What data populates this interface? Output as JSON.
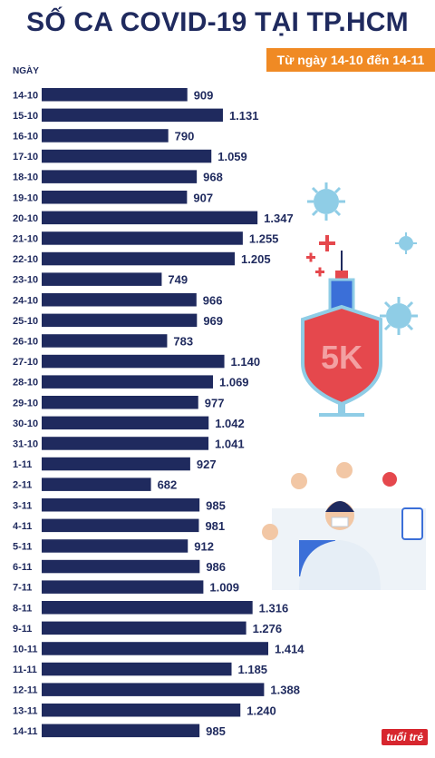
{
  "header": {
    "title": "SỐ CA COVID-19 TẠI TP.HCM",
    "subtitle": "Từ ngày 14-10 đến 14-11"
  },
  "logo_text": "tuổi trẻ",
  "chart_data": {
    "type": "bar",
    "orientation": "horizontal",
    "ylabel": "NGÀY",
    "categories": [
      "14-10",
      "15-10",
      "16-10",
      "17-10",
      "18-10",
      "19-10",
      "20-10",
      "21-10",
      "22-10",
      "23-10",
      "24-10",
      "25-10",
      "26-10",
      "27-10",
      "28-10",
      "29-10",
      "30-10",
      "31-10",
      "1-11",
      "2-11",
      "3-11",
      "4-11",
      "5-11",
      "6-11",
      "7-11",
      "8-11",
      "9-11",
      "10-11",
      "11-11",
      "12-11",
      "13-11",
      "14-11"
    ],
    "values": [
      909,
      1131,
      790,
      1059,
      968,
      907,
      1347,
      1255,
      1205,
      749,
      966,
      969,
      783,
      1140,
      1069,
      977,
      1042,
      1041,
      927,
      682,
      985,
      981,
      912,
      986,
      1009,
      1316,
      1276,
      1414,
      1185,
      1388,
      1240,
      985
    ],
    "value_labels": [
      "909",
      "1.131",
      "790",
      "1.059",
      "968",
      "907",
      "1.347",
      "1.255",
      "1.205",
      "749",
      "966",
      "969",
      "783",
      "1.140",
      "1.069",
      "977",
      "1.042",
      "1.041",
      "927",
      "682",
      "985",
      "981",
      "912",
      "986",
      "1.009",
      "1.316",
      "1.276",
      "1.414",
      "1.185",
      "1.388",
      "1.240",
      "985"
    ],
    "bar_color": "#1f2a5e",
    "accent_color": "#f08a24"
  }
}
